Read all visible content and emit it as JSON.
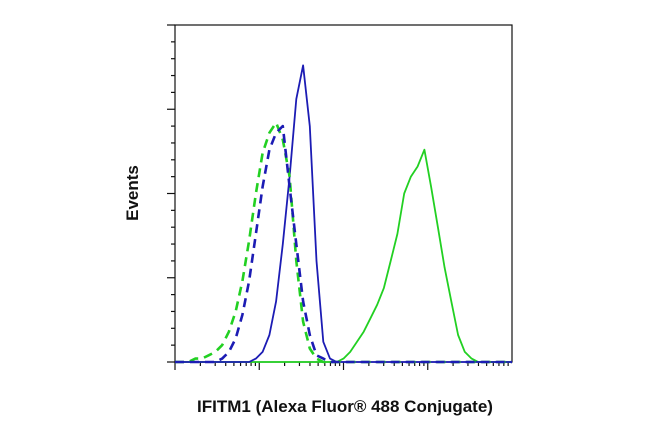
{
  "chart_data": {
    "type": "line",
    "xlabel": "IFITM1 (Alexa Fluor® 488 Conjugate)",
    "ylabel": "Events",
    "xlim": [
      0,
      100
    ],
    "ylim": [
      0,
      100
    ],
    "x": [
      0,
      2,
      4,
      6,
      8,
      10,
      12,
      14,
      16,
      18,
      20,
      22,
      24,
      26,
      28,
      30,
      32,
      34,
      36,
      38,
      40,
      42,
      44,
      46,
      48,
      50,
      52,
      54,
      56,
      58,
      60,
      62,
      64,
      66,
      68,
      70,
      72,
      74,
      76,
      78,
      80,
      82,
      84,
      86,
      88,
      90,
      92,
      94,
      96,
      98,
      100
    ],
    "series": [
      {
        "color": "#22d022",
        "dashed": false,
        "values": [
          0,
          0,
          0,
          0,
          0,
          0,
          0,
          0,
          0,
          0,
          0,
          0,
          0,
          0,
          0,
          0,
          0,
          0,
          0,
          0,
          0,
          0,
          0,
          0,
          0,
          1,
          3,
          6,
          9,
          13,
          17,
          22,
          30,
          38,
          50,
          55,
          58,
          63,
          52,
          40,
          28,
          18,
          8,
          3,
          1,
          0,
          0,
          0,
          0,
          0,
          0
        ]
      },
      {
        "color": "#1c1cb4",
        "dashed": false,
        "values": [
          0,
          0,
          0,
          0,
          0,
          0,
          0,
          0,
          0,
          0,
          0,
          0,
          1,
          3,
          8,
          18,
          35,
          55,
          78,
          88,
          70,
          30,
          6,
          1,
          0,
          0,
          0,
          0,
          0,
          0,
          0,
          0,
          0,
          0,
          0,
          0,
          0,
          0,
          0,
          0,
          0,
          0,
          0,
          0,
          0,
          0,
          0,
          0,
          0,
          0,
          0
        ]
      },
      {
        "color": "#22d022",
        "dashed": true,
        "values": [
          0,
          0,
          0,
          1,
          1,
          2,
          3,
          5,
          9,
          15,
          24,
          36,
          50,
          62,
          68,
          71,
          66,
          55,
          30,
          12,
          4,
          1,
          0,
          0,
          0,
          0,
          0,
          0,
          0,
          0,
          0,
          0,
          0,
          0,
          0,
          0,
          0,
          0,
          0,
          0,
          0,
          0,
          0,
          0,
          0,
          0,
          0,
          0,
          0,
          0,
          0
        ]
      },
      {
        "color": "#1c1cb4",
        "dashed": true,
        "values": [
          0,
          0,
          0,
          0,
          0,
          0,
          0,
          1,
          3,
          7,
          14,
          24,
          38,
          52,
          63,
          68,
          70,
          52,
          35,
          18,
          8,
          2,
          1,
          0,
          0,
          0,
          0,
          0,
          0,
          0,
          0,
          0,
          0,
          0,
          0,
          0,
          0,
          0,
          0,
          0,
          0,
          0,
          0,
          0,
          0,
          0,
          0,
          0,
          0,
          0,
          0
        ]
      }
    ]
  }
}
